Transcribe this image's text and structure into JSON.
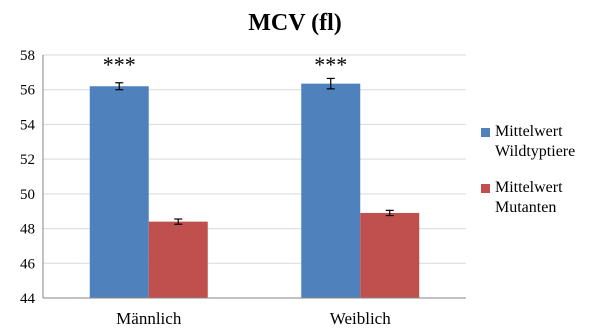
{
  "chart_data": {
    "type": "bar",
    "title": "MCV (fl)",
    "categories": [
      "Männlich",
      "Weiblich"
    ],
    "series": [
      {
        "name": "Mittelwert Wildtyptiere",
        "name_lines": [
          "Mittelwert",
          "Wildtyptiere"
        ],
        "color": "#4F81BD",
        "values": [
          56.2,
          56.35
        ],
        "errors": [
          0.2,
          0.3
        ]
      },
      {
        "name": "Mittelwert Mutanten",
        "name_lines": [
          "Mittelwert",
          "Mutanten"
        ],
        "color": "#C0504D",
        "values": [
          48.4,
          48.9
        ],
        "errors": [
          0.15,
          0.15
        ]
      }
    ],
    "significance": [
      "***",
      "***"
    ],
    "ylim": [
      44,
      58
    ],
    "yticks": [
      44,
      46,
      48,
      50,
      52,
      54,
      56,
      58
    ],
    "grid": true,
    "legend_position": "right",
    "xlabel": "",
    "ylabel": ""
  }
}
